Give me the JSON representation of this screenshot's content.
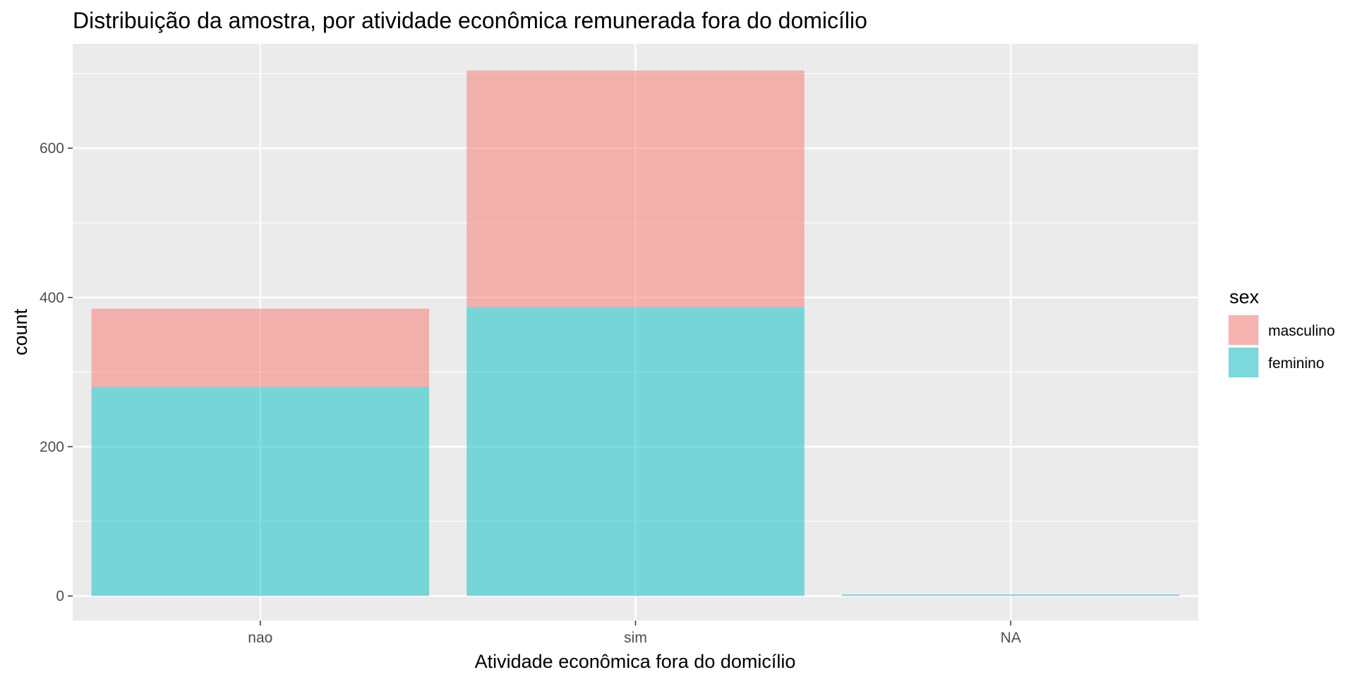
{
  "chart_data": {
    "type": "bar",
    "stacked": true,
    "title": "Distribuição da amostra, por atividade econômica remunerada fora do domicílio",
    "xlabel": "Atividade econômica fora do domicílio",
    "ylabel": "count",
    "categories": [
      "nao",
      "sim",
      "NA"
    ],
    "y_ticks": [
      0,
      200,
      400,
      600
    ],
    "ylim": [
      -33,
      740
    ],
    "grid": true,
    "legend": {
      "title": "sex",
      "placement": "right"
    },
    "series": [
      {
        "name": "feminino",
        "values": [
          280,
          387,
          2
        ],
        "color": "#00BFC4"
      },
      {
        "name": "masculino",
        "values": [
          105,
          317,
          0
        ],
        "color": "#F8766D"
      }
    ],
    "legend_order": [
      "masculino",
      "feminino"
    ],
    "panel_background": "#EBEBEB",
    "bar_opacity": 0.5
  }
}
